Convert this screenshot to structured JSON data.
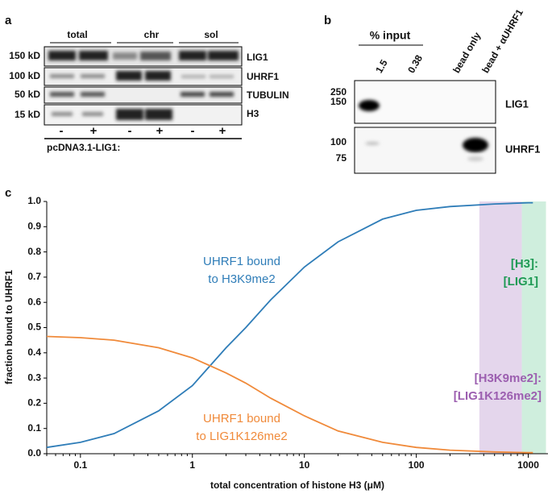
{
  "panel_a": {
    "label": "a",
    "groups": [
      "total",
      "chr",
      "sol"
    ],
    "markers": [
      "150 kD",
      "100 kD",
      "50 kD",
      "15 kD"
    ],
    "proteins": [
      "LIG1",
      "UHRF1",
      "TUBULIN",
      "H3"
    ],
    "signs": [
      "-",
      "+",
      "-",
      "+",
      "-",
      "+"
    ],
    "construct": "pcDNA3.1-LIG1:"
  },
  "panel_b": {
    "label": "b",
    "header": "% input",
    "lanes": [
      "1.5",
      "0.38",
      "bead only",
      "bead + αUHRF1"
    ],
    "markers": [
      "250",
      "150",
      "100",
      "75"
    ],
    "proteins": [
      "LIG1",
      "UHRF1"
    ]
  },
  "chart_data": {
    "panel_label": "c",
    "type": "line",
    "xlabel": "total concentration of histone H3 (μM)",
    "ylabel": "fraction bound to UHRF1",
    "xscale": "log",
    "xlim": [
      0.05,
      1500
    ],
    "xticks": [
      0.1,
      1,
      10,
      100,
      1000
    ],
    "ylim": [
      0,
      1
    ],
    "yticks": [
      {
        "value": 0,
        "label": "0.0"
      },
      0.1,
      0.2,
      0.3,
      0.4,
      0.5,
      0.6,
      0.7,
      0.8,
      0.9,
      {
        "value": 1,
        "label": "1.0"
      }
    ],
    "x": [
      0.05,
      0.1,
      0.2,
      0.5,
      1,
      2,
      3,
      5,
      10,
      20,
      50,
      100,
      200,
      500,
      1000,
      1100
    ],
    "series": [
      {
        "name": [
          "UHRF1 bound",
          "to H3K9me2"
        ],
        "color": "#2f7db8",
        "values": [
          0.025,
          0.045,
          0.08,
          0.17,
          0.27,
          0.42,
          0.5,
          0.61,
          0.74,
          0.84,
          0.93,
          0.965,
          0.98,
          0.99,
          0.995,
          0.995
        ]
      },
      {
        "name": [
          "UHRF1 bound",
          "to LIG1K126me2"
        ],
        "color": "#f08a3a",
        "values": [
          0.465,
          0.46,
          0.45,
          0.42,
          0.38,
          0.32,
          0.28,
          0.22,
          0.15,
          0.09,
          0.045,
          0.025,
          0.014,
          0.007,
          0.004,
          0.004
        ]
      }
    ],
    "bands": [
      {
        "label": [
          "[H3K9me2]:",
          "[LIG1K126me2]"
        ],
        "start": 366,
        "end": 876,
        "color": "#9c5fb0",
        "fill": "#e4d6ec"
      },
      {
        "label": [
          "[H3]:",
          "[LIG1]"
        ],
        "start": 876,
        "end": 1440,
        "color": "#1f9a55",
        "fill": "#cfeedd"
      }
    ]
  }
}
